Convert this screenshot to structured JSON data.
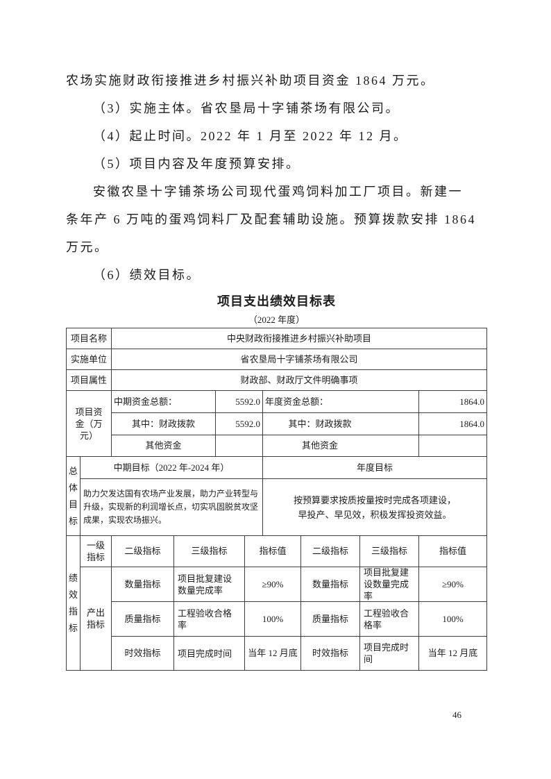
{
  "page_number": "46",
  "body": {
    "lines": [
      {
        "text": "农场实施财政衔接推进乡村振兴补助项目资金 1864 万元。",
        "indent": false
      },
      {
        "text": "（3）实施主体。省农垦局十字铺茶场有限公司。",
        "indent": true
      },
      {
        "text": "（4）起止时间。2022 年 1 月至 2022 年 12 月。",
        "indent": true
      },
      {
        "text": "（5）项目内容及年度预算安排。",
        "indent": true
      },
      {
        "text": "安徽农垦十字铺茶场公司现代蛋鸡饲料加工厂项目。新建一",
        "indent": true
      },
      {
        "text": "条年产 6 万吨的蛋鸡饲料厂及配套辅助设施。预算拨款安排 1864",
        "indent": false
      },
      {
        "text": "万元。",
        "indent": false
      },
      {
        "text": "（6）绩效目标。",
        "indent": true
      }
    ]
  },
  "table": {
    "title": "项目支出绩效目标表",
    "subtitle": "（2022 年度）",
    "basic_rows": [
      {
        "label": "项目名称",
        "value": "中央财政衔接推进乡村振兴补助项目"
      },
      {
        "label": "实施单位",
        "value": "省农垦局十字铺茶场有限公司"
      },
      {
        "label": "项目属性",
        "value": "财政部、财政厅文件明确事项"
      }
    ],
    "funding": {
      "label": "项目资金（万元）",
      "rows": [
        {
          "left_label": "中期资金总额：",
          "left_value": "5592.0",
          "right_label": "年度资金总额：",
          "right_value": "1864.0"
        },
        {
          "left_label": "其中：财政拨款",
          "left_value": "5592.0",
          "right_label": "其中：财政拨款",
          "right_value": "1864.0"
        },
        {
          "left_label": "其他资金",
          "left_value": "",
          "right_label": "其他资金",
          "right_value": ""
        }
      ]
    },
    "overall_goal": {
      "label": "总体目标",
      "mid_term_header": "中期目标（2022 年-2024 年）",
      "annual_header": "年度目标",
      "mid_term_text": "助力欠发达国有农场产业发展，助力产业转型与\n升级，实现新的利润增长点，切实巩固脱贫攻坚\n成果，实现农场振兴。",
      "annual_text": "按预算要求按质按量按时完成各项建设，\n早投产、早见效，积极发挥投资效益。"
    },
    "performance": {
      "label": "绩效指标",
      "category_label": "产出指标",
      "headers": {
        "level1": "一级指标",
        "level2_mid": "二级指标",
        "level3_mid": "三级指标",
        "value_mid": "指标值",
        "level2_annual": "二级指标",
        "level3_annual": "三级指标",
        "value_annual": "指标值"
      },
      "rows": [
        {
          "l2_mid": "数量指标",
          "l3_mid": "项目批复建设\n数量完成率",
          "v_mid": "≥90%",
          "l2_annual": "数量指标",
          "l3_annual": "项目批复建\n设数量完成\n率",
          "v_annual": "≥90%"
        },
        {
          "l2_mid": "质量指标",
          "l3_mid": "工程验收合格\n率",
          "v_mid": "100%",
          "l2_annual": "质量指标",
          "l3_annual": "工程验收合\n格率",
          "v_annual": "100%"
        },
        {
          "l2_mid": "时效指标",
          "l3_mid": "项目完成时间",
          "v_mid": "当年 12 月底",
          "l2_annual": "时效指标",
          "l3_annual": "项目完成时\n间",
          "v_annual": "当年 12 月底"
        }
      ]
    }
  }
}
